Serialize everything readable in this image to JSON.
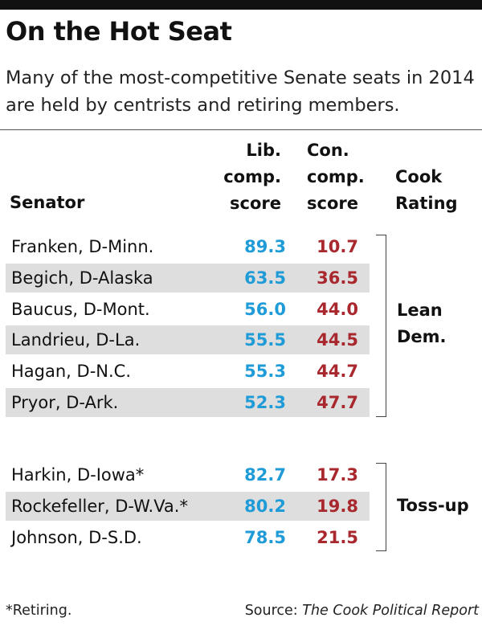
{
  "title": "On the Hot Seat",
  "subtitle": "Many of the most-competitive Senate seats in 2014 are held by centrists and retiring members.",
  "headers": {
    "senator": "Senator",
    "lib_l1": "Lib.",
    "lib_l2": "comp.",
    "lib_l3": "score",
    "con_l1": "Con.",
    "con_l2": "comp.",
    "con_l3": "score",
    "cook_l1": "Cook",
    "cook_l2": "Rating"
  },
  "footnote": "*Retiring.",
  "source_prefix": "Source: ",
  "source_name": "The Cook Political Report",
  "colors": {
    "lib": "#1f9bd7",
    "con": "#a8282e",
    "shade": "#dedede"
  },
  "chart_data": {
    "type": "table",
    "columns": [
      "Senator",
      "Lib. comp. score",
      "Con. comp. score",
      "Cook Rating"
    ],
    "groups": [
      {
        "rating_l1": "Lean",
        "rating_l2": "Dem.",
        "rows": [
          {
            "name": "Franken, D-Minn.",
            "lib": "89.3",
            "con": "10.7"
          },
          {
            "name": "Begich, D-Alaska",
            "lib": "63.5",
            "con": "36.5"
          },
          {
            "name": "Baucus, D-Mont.",
            "lib": "56.0",
            "con": "44.0"
          },
          {
            "name": "Landrieu, D-La.",
            "lib": "55.5",
            "con": "44.5"
          },
          {
            "name": "Hagan, D-N.C.",
            "lib": "55.3",
            "con": "44.7"
          },
          {
            "name": "Pryor, D-Ark.",
            "lib": "52.3",
            "con": "47.7"
          }
        ]
      },
      {
        "rating_l1": "Toss-up",
        "rows": [
          {
            "name": "Harkin, D-Iowa*",
            "lib": "82.7",
            "con": "17.3"
          },
          {
            "name": "Rockefeller, D-W.Va.*",
            "lib": "80.2",
            "con": "19.8"
          },
          {
            "name": "Johnson, D-S.D.",
            "lib": "78.5",
            "con": "21.5"
          }
        ]
      }
    ]
  }
}
